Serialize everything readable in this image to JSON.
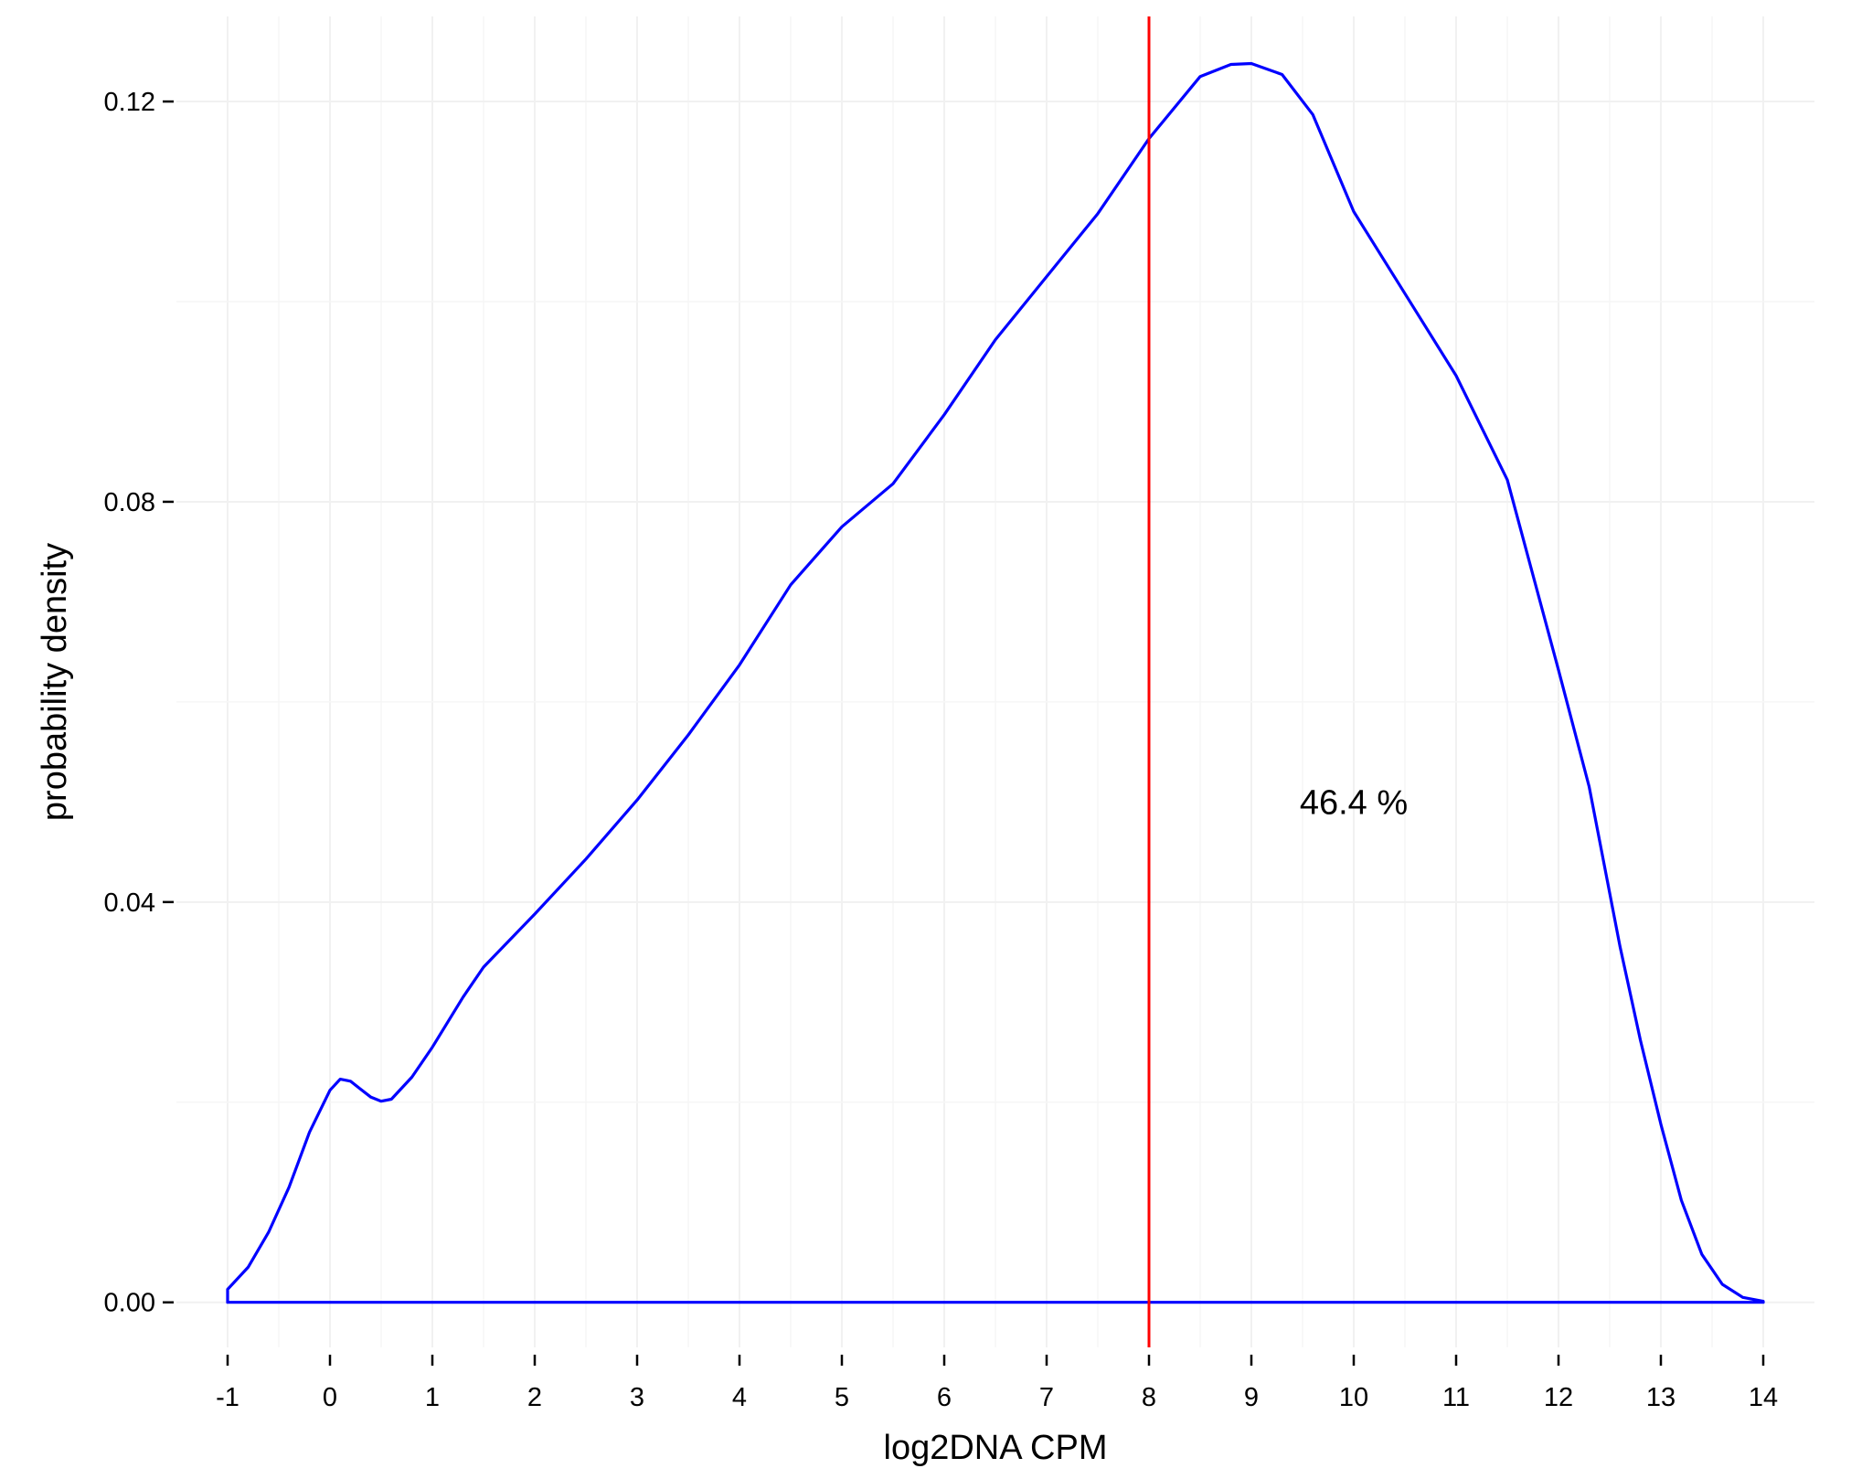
{
  "chart_data": {
    "type": "line",
    "xlabel": "log2DNA CPM",
    "ylabel": "probability density",
    "xlim": [
      -1.5,
      14.5
    ],
    "ylim": [
      -0.0045,
      0.1285
    ],
    "x_ticks": [
      -1,
      0,
      1,
      2,
      3,
      4,
      5,
      6,
      7,
      8,
      9,
      10,
      11,
      12,
      13,
      14
    ],
    "x_tick_labels": [
      "-1",
      "0",
      "1",
      "2",
      "3",
      "4",
      "5",
      "6",
      "7",
      "8",
      "9",
      "10",
      "11",
      "12",
      "13",
      "14"
    ],
    "y_ticks": [
      0,
      0.04,
      0.08,
      0.12
    ],
    "y_tick_labels": [
      "0.00",
      "0.04",
      "0.08",
      "0.12"
    ],
    "grid": true,
    "series": [
      {
        "color": "#0000ff",
        "x": [
          -1.0,
          -0.8,
          -0.6,
          -0.4,
          -0.2,
          0.0,
          0.1,
          0.2,
          0.3,
          0.4,
          0.5,
          0.6,
          0.8,
          1.0,
          1.3,
          1.5,
          2.0,
          2.5,
          3.0,
          3.5,
          4.0,
          4.5,
          5.0,
          5.5,
          6.0,
          6.5,
          7.0,
          7.5,
          8.0,
          8.5,
          8.8,
          9.0,
          9.3,
          9.6,
          10.0,
          10.5,
          11.0,
          11.5,
          12.0,
          12.3,
          12.6,
          12.8,
          13.0,
          13.2,
          13.4,
          13.6,
          13.8,
          14.0
        ],
        "y": [
          0.0013,
          0.0035,
          0.007,
          0.0115,
          0.017,
          0.0212,
          0.0223,
          0.0221,
          0.0213,
          0.0205,
          0.0201,
          0.0203,
          0.0225,
          0.0255,
          0.0305,
          0.0335,
          0.0388,
          0.0443,
          0.0502,
          0.0567,
          0.0637,
          0.0717,
          0.0775,
          0.0818,
          0.0887,
          0.0962,
          0.1025,
          0.1088,
          0.1163,
          0.1225,
          0.1237,
          0.1238,
          0.1227,
          0.1187,
          0.109,
          0.1008,
          0.0926,
          0.0822,
          0.0632,
          0.0515,
          0.0356,
          0.0262,
          0.0178,
          0.0102,
          0.0048,
          0.0018,
          0.0005,
          0.0001
        ]
      }
    ],
    "vline": {
      "x": 8,
      "color": "#ff0000"
    },
    "annotation": {
      "text": "46.4 %",
      "x": 10.0,
      "y": 0.05
    }
  }
}
